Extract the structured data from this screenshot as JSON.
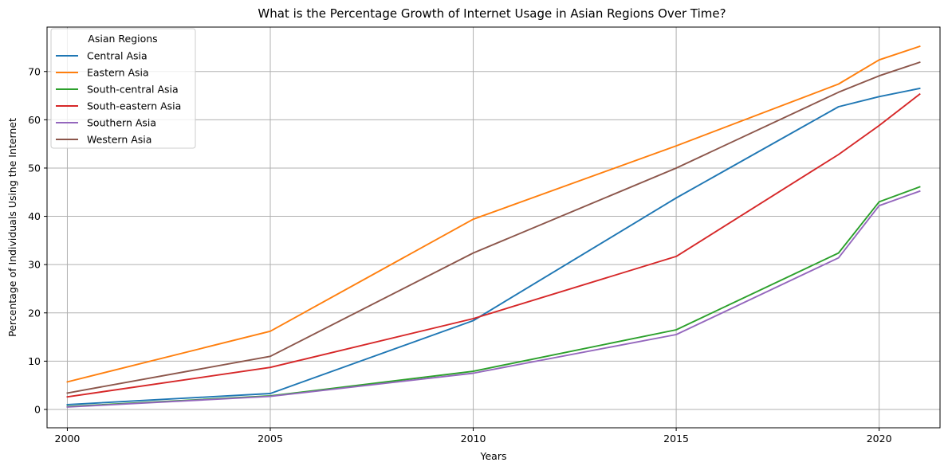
{
  "chart_data": {
    "type": "line",
    "title": "What is the Percentage Growth of Internet Usage in Asian Regions Over Time?",
    "xlabel": "Years",
    "ylabel": "Percentage of Individuals Using the Internet",
    "x": [
      2000,
      2005,
      2010,
      2015,
      2019,
      2020,
      2021
    ],
    "xlim": [
      1999.5,
      2021.5
    ],
    "ylim": [
      -3.8,
      79.2
    ],
    "xticks": [
      2000,
      2005,
      2010,
      2015,
      2020
    ],
    "yticks": [
      0,
      10,
      20,
      30,
      40,
      50,
      60,
      70
    ],
    "grid": true,
    "legend": {
      "title": "Asian Regions",
      "placement": "upper-left"
    },
    "series": [
      {
        "name": "Central Asia",
        "color": "#1f77b4",
        "values": [
          1.0,
          3.3,
          18.4,
          43.8,
          62.7,
          64.8,
          66.5
        ]
      },
      {
        "name": "Eastern Asia",
        "color": "#ff7f0e",
        "values": [
          5.7,
          16.2,
          39.4,
          54.6,
          67.4,
          72.4,
          75.2
        ]
      },
      {
        "name": "South-central Asia",
        "color": "#2ca02c",
        "values": [
          0.6,
          2.8,
          7.9,
          16.5,
          32.4,
          43.0,
          46.1
        ]
      },
      {
        "name": "South-eastern Asia",
        "color": "#d62728",
        "values": [
          2.6,
          8.7,
          18.8,
          31.7,
          52.8,
          58.8,
          65.3
        ]
      },
      {
        "name": "Southern Asia",
        "color": "#9467bd",
        "values": [
          0.5,
          2.7,
          7.5,
          15.5,
          31.4,
          42.2,
          45.2
        ]
      },
      {
        "name": "Western Asia",
        "color": "#8c564b",
        "values": [
          3.4,
          11.0,
          32.4,
          50.0,
          65.7,
          69.1,
          71.9
        ]
      }
    ]
  }
}
